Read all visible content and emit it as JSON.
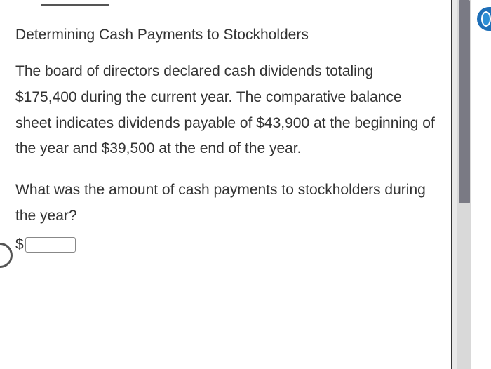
{
  "heading": "Determining Cash Payments to Stockholders",
  "paragraph": "The board of directors declared cash dividends totaling $175,400 during the current year. The comparative balance sheet indicates dividends payable of $43,900 at the beginning of the year and $39,500 at the end of the year.",
  "question": "What was the amount of cash payments to stockholders during the year?",
  "currency_symbol": "$",
  "answer_value": "",
  "colors": {
    "page_bg": "#ffffff",
    "outer_bg": "#e8e8e8",
    "text": "#333333",
    "scrollbar_track": "#d9d9d9",
    "scrollbar_thumb": "#7a7a84",
    "badge": "#1e6fb8"
  },
  "typography": {
    "font_family": "Verdana",
    "heading_fontsize": 21,
    "body_fontsize": 21,
    "line_height": 1.75
  }
}
